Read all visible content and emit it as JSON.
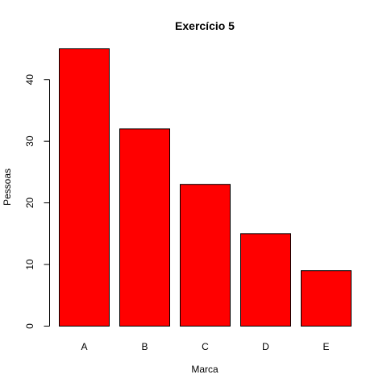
{
  "chart_data": {
    "type": "bar",
    "title": "Exercício 5",
    "xlabel": "Marca",
    "ylabel": "Pessoas",
    "categories": [
      "A",
      "B",
      "C",
      "D",
      "E"
    ],
    "values": [
      45,
      32,
      23,
      15,
      9
    ],
    "yticks": [
      0,
      10,
      20,
      30,
      40
    ],
    "ylim": [
      0,
      45
    ],
    "grid": false,
    "bar_color": "#ff0000",
    "border_color": "#000000"
  }
}
